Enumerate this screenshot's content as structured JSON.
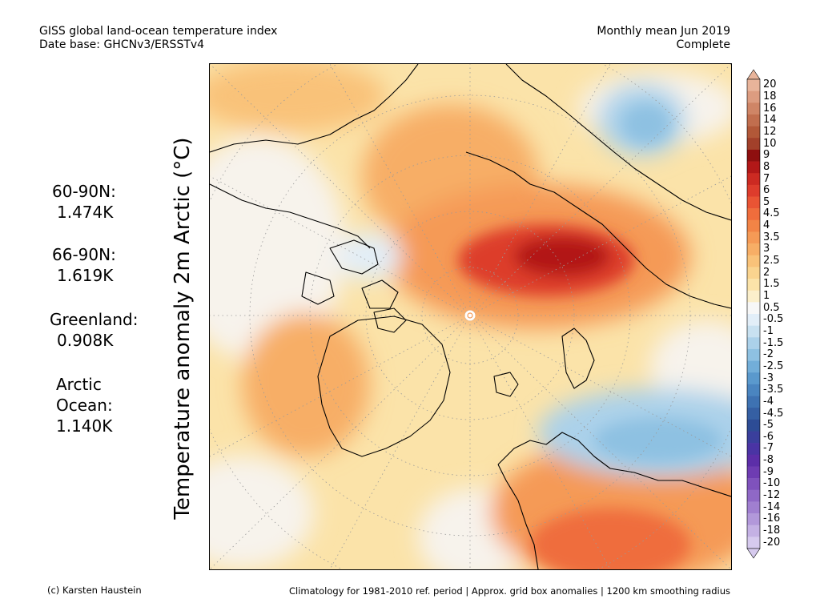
{
  "header": {
    "title_line1": "GISS global land-ocean temperature index",
    "title_line2": "Date base: GHCNv3/ERSSTv4",
    "period_line1": "Monthly mean Jun 2019",
    "period_line2": "Complete"
  },
  "stats": [
    {
      "label": "60-90N:",
      "value": "1.474K"
    },
    {
      "label": "66-90N:",
      "value": "1.619K"
    },
    {
      "label": "Greenland:",
      "value": "0.908K"
    },
    {
      "label_line1": "Arctic",
      "label_line2": "Ocean:",
      "value": "1.140K"
    }
  ],
  "y_axis_label": "Temperature anomaly 2m Arctic (°C)",
  "footer": {
    "credit": "(c) Karsten Haustein",
    "note": "Climatology for 1981-2010 ref. period | Approx. grid box anomalies | 1200 km smoothing radius"
  },
  "legend": {
    "labels": [
      "20",
      "18",
      "16",
      "14",
      "12",
      "10",
      "9",
      "8",
      "7",
      "6",
      "5",
      "4.5",
      "4",
      "3.5",
      "3",
      "2.5",
      "2",
      "1.5",
      "1",
      "0.5",
      "-0.5",
      "-1",
      "-1.5",
      "-2",
      "-2.5",
      "-3",
      "-3.5",
      "-4",
      "-4.5",
      "-5",
      "-6",
      "-7",
      "-8",
      "-9",
      "-10",
      "-12",
      "-14",
      "-16",
      "-18",
      "-20"
    ],
    "colors": [
      "#e8b49a",
      "#dc9c80",
      "#cf8566",
      "#c16e4e",
      "#b25838",
      "#a2402a",
      "#8e0f0f",
      "#b21818",
      "#cc2a22",
      "#dd3c2c",
      "#e95434",
      "#ef6d3c",
      "#f28446",
      "#f59a56",
      "#f7ae66",
      "#f9c279",
      "#fad48f",
      "#fbe3a9",
      "#fbefcb",
      "#f7f7f7",
      "#e2eef8",
      "#c8e1f1",
      "#abd1ea",
      "#8ec1e2",
      "#72aed9",
      "#5a99cd",
      "#4a85c0",
      "#3e72b2",
      "#355fa3",
      "#2d4c95",
      "#3a3f9c",
      "#4a34a4",
      "#5c2ea8",
      "#6e3cb2",
      "#7f52bc",
      "#8f68c6",
      "#a07fd0",
      "#b298da",
      "#c4b1e4",
      "#d6caee"
    ]
  },
  "map": {
    "center_marker": "north-pole-marker"
  }
}
